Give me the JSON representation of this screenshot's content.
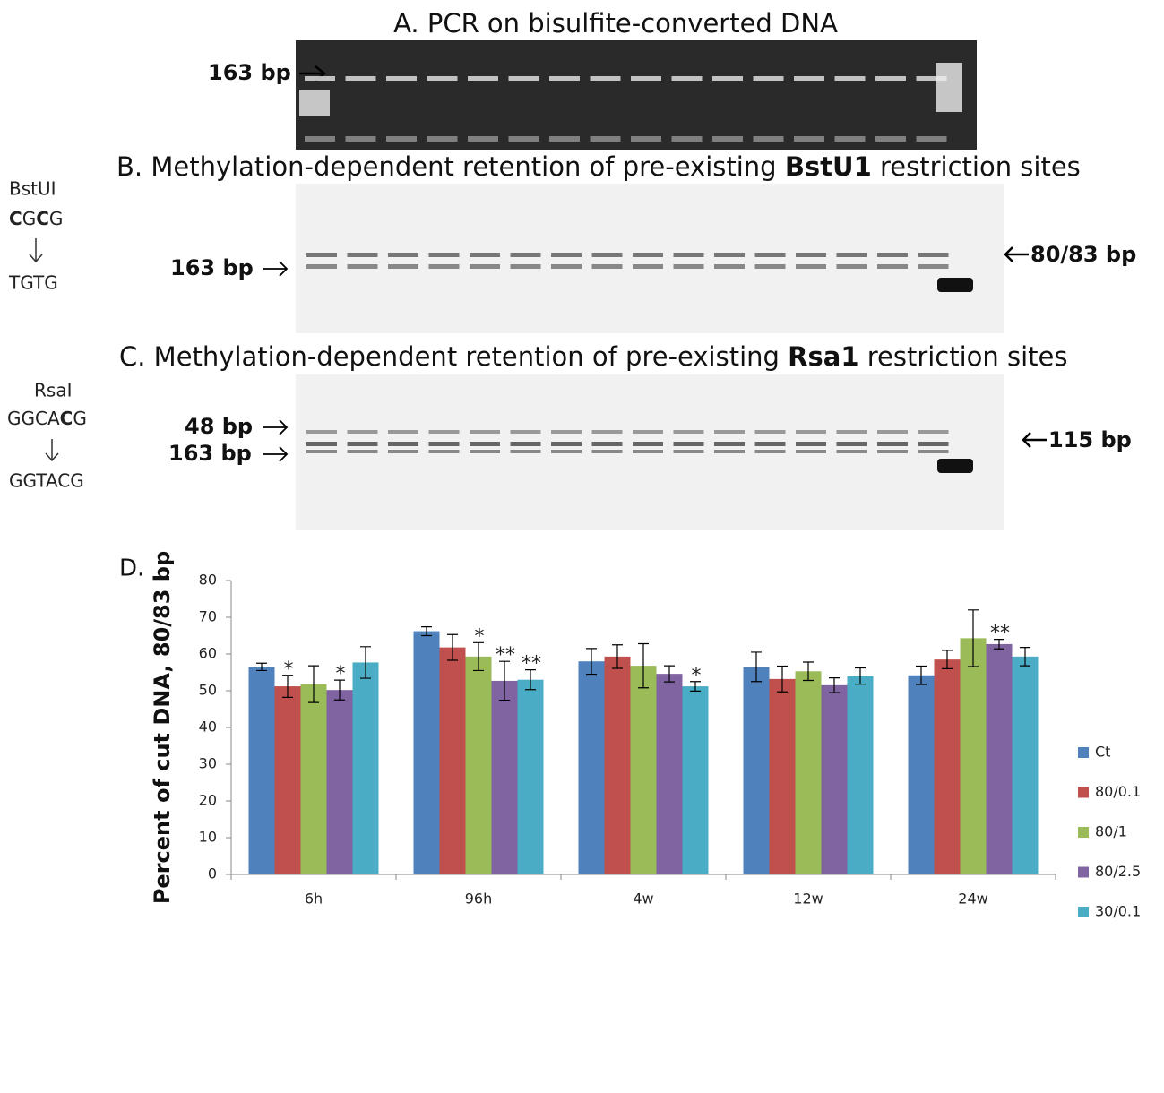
{
  "gels": {
    "a": {
      "title": "A. PCR on bisulfite-converted DNA",
      "band_label": "163 bp"
    },
    "b": {
      "title_parts": [
        "B. Methylation-dependent  retention of pre-existing ",
        "BstU1",
        " restriction sites"
      ],
      "enzyme": "BstUI",
      "site_parts": [
        "C",
        "G",
        "C",
        "G"
      ],
      "converted": "TGTG",
      "left_label": "163 bp",
      "right_label": "80/83 bp"
    },
    "c": {
      "title_parts": [
        "C. Methylation-dependent  retention of pre-existing ",
        "Rsa1",
        " restriction sites"
      ],
      "enzyme": "RsaI",
      "site_parts": [
        "GGCA",
        "C",
        "G"
      ],
      "converted": "GGTACG",
      "left_labels": [
        "48 bp",
        "163 bp"
      ],
      "right_label": "115 bp"
    }
  },
  "chart_data": {
    "type": "bar",
    "panel_label": "D.",
    "y_label": "Percent of cut DNA, 80/83 bp",
    "categories": [
      "6h",
      "96h",
      "4w",
      "12w",
      "24w"
    ],
    "series": [
      {
        "name": "Ct",
        "color": "#4f81bd",
        "values": [
          56.5,
          66.2,
          58,
          56.5,
          54.2
        ],
        "errors": [
          1,
          1.2,
          3.5,
          4,
          2.5
        ],
        "significance": [
          null,
          null,
          null,
          null,
          null
        ]
      },
      {
        "name": "80/0.1",
        "color": "#c0504d",
        "values": [
          51.2,
          61.8,
          59.3,
          53.2,
          58.5
        ],
        "errors": [
          3,
          3.5,
          3.2,
          3.5,
          2.5
        ],
        "significance": [
          "*",
          null,
          null,
          null,
          null
        ]
      },
      {
        "name": "80/1",
        "color": "#9bbb59",
        "values": [
          51.8,
          59.3,
          56.8,
          55.3,
          64.3
        ],
        "errors": [
          5,
          3.8,
          6,
          2.5,
          7.7
        ],
        "significance": [
          null,
          "*",
          null,
          null,
          null
        ]
      },
      {
        "name": "80/2.5",
        "color": "#8064a2",
        "values": [
          50.2,
          52.7,
          54.6,
          51.5,
          62.7
        ],
        "errors": [
          2.7,
          5.3,
          2.2,
          2,
          1.3
        ],
        "significance": [
          "*",
          "**",
          null,
          null,
          "**"
        ]
      },
      {
        "name": "30/0.1",
        "color": "#4bacc6",
        "values": [
          57.7,
          53,
          51.2,
          54,
          59.3
        ],
        "errors": [
          4.3,
          2.7,
          1.3,
          2.2,
          2.5
        ],
        "significance": [
          null,
          "**",
          "*",
          null,
          null
        ]
      }
    ],
    "ylim": [
      0,
      80
    ],
    "yticks": [
      0,
      10,
      20,
      30,
      40,
      50,
      60,
      70,
      80
    ],
    "grid": false,
    "legend": "right"
  }
}
